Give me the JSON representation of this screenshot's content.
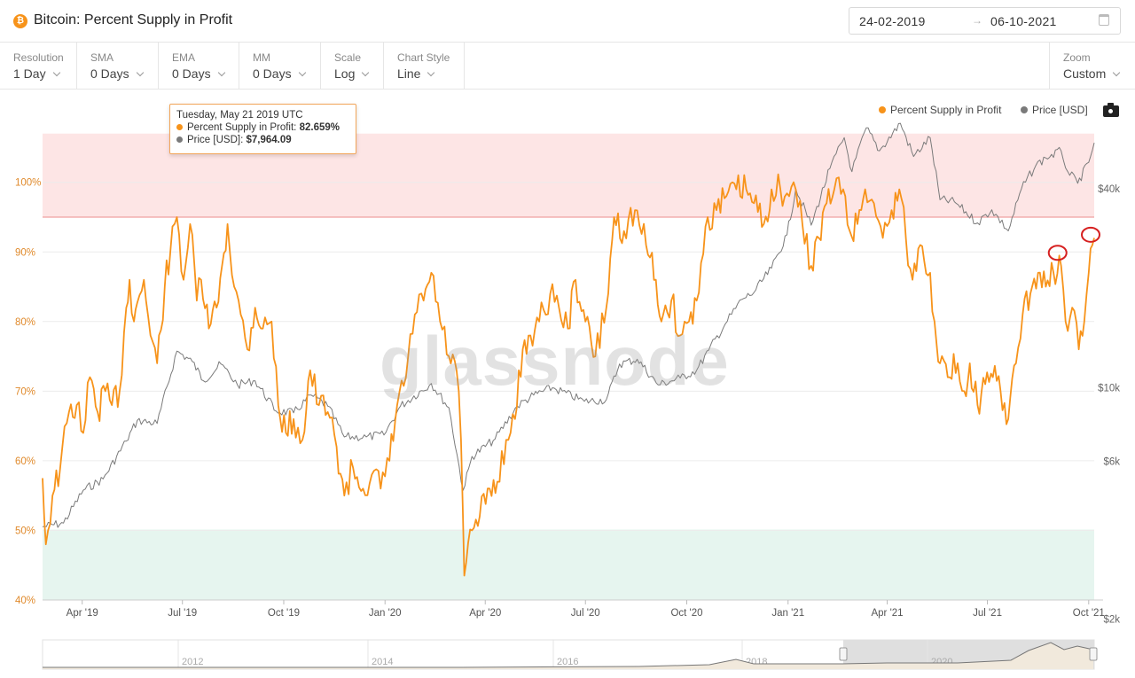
{
  "header": {
    "title": "Bitcoin: Percent Supply in Profit",
    "coin_icon": "bitcoin-icon",
    "date_start": "24-02-2019",
    "date_end": "06-10-2021",
    "date_arrow": "→"
  },
  "toolbar": {
    "resolution": {
      "label": "Resolution",
      "value": "1 Day"
    },
    "sma": {
      "label": "SMA",
      "value": "0 Days"
    },
    "ema": {
      "label": "EMA",
      "value": "0 Days"
    },
    "mm": {
      "label": "MM",
      "value": "0 Days"
    },
    "scale": {
      "label": "Scale",
      "value": "Log"
    },
    "chart_style": {
      "label": "Chart Style",
      "value": "Line"
    },
    "zoom": {
      "label": "Zoom",
      "value": "Custom"
    }
  },
  "legend": {
    "series1": "Percent Supply in Profit",
    "series2": "Price [USD]"
  },
  "tooltip": {
    "date": "Tuesday, May 21 2019 UTC",
    "series1_label": "Percent Supply in Profit:",
    "series1_value": "82.659%",
    "series2_label": "Price [USD]:",
    "series2_value": "$7,964.09"
  },
  "watermark": "glassnode",
  "navigator": {
    "year_labels": [
      "2012",
      "2014",
      "2016",
      "2018",
      "2020"
    ]
  },
  "colors": {
    "supply": "#f7931a",
    "price": "#7a7a7a",
    "overbought_band": "#fde5e5",
    "oversold_band": "#e6f5ef",
    "marker": "#d62020"
  },
  "chart_data": {
    "type": "line",
    "title": "Bitcoin: Percent Supply in Profit",
    "x_tick_labels": [
      "Apr '19",
      "Jul '19",
      "Oct '19",
      "Jan '20",
      "Apr '20",
      "Jul '20",
      "Oct '20",
      "Jan '21",
      "Apr '21",
      "Jul '21",
      "Oct '21"
    ],
    "x_range": [
      "2019-02-24",
      "2021-10-06"
    ],
    "left_axis": {
      "ticks": [
        "40%",
        "50%",
        "60%",
        "70%",
        "80%",
        "90%",
        "100%"
      ],
      "range": [
        40,
        107
      ]
    },
    "right_axis": {
      "ticks": [
        "$2k",
        "$6k",
        "$10k",
        "$40k"
      ],
      "scale": "log",
      "range": [
        2000,
        90000
      ]
    },
    "bands": [
      {
        "from": 95,
        "to": 107,
        "color": "#fde5e5"
      },
      {
        "from": 40,
        "to": 50,
        "color": "#e6f5ef"
      }
    ],
    "series": [
      {
        "name": "Percent Supply in Profit",
        "axis": "left",
        "color": "#f7931a",
        "points": [
          [
            "2019-02-24",
            57.5
          ],
          [
            "2019-02-27",
            48
          ],
          [
            "2019-03-05",
            55
          ],
          [
            "2019-03-12",
            59
          ],
          [
            "2019-03-20",
            67
          ],
          [
            "2019-03-27",
            68
          ],
          [
            "2019-04-02",
            64
          ],
          [
            "2019-04-08",
            72
          ],
          [
            "2019-04-15",
            67
          ],
          [
            "2019-04-22",
            70
          ],
          [
            "2019-04-28",
            68
          ],
          [
            "2019-05-05",
            70
          ],
          [
            "2019-05-11",
            82
          ],
          [
            "2019-05-14",
            86
          ],
          [
            "2019-05-18",
            80
          ],
          [
            "2019-05-21",
            82.7
          ],
          [
            "2019-05-27",
            86
          ],
          [
            "2019-06-02",
            78
          ],
          [
            "2019-06-08",
            74
          ],
          [
            "2019-06-15",
            85
          ],
          [
            "2019-06-20",
            90
          ],
          [
            "2019-06-26",
            95
          ],
          [
            "2019-07-02",
            86
          ],
          [
            "2019-07-08",
            94
          ],
          [
            "2019-07-14",
            83
          ],
          [
            "2019-07-18",
            86
          ],
          [
            "2019-07-25",
            79
          ],
          [
            "2019-08-01",
            82
          ],
          [
            "2019-08-06",
            88
          ],
          [
            "2019-08-11",
            94
          ],
          [
            "2019-08-17",
            85
          ],
          [
            "2019-08-23",
            81
          ],
          [
            "2019-08-29",
            76
          ],
          [
            "2019-09-05",
            82
          ],
          [
            "2019-09-12",
            79
          ],
          [
            "2019-09-20",
            80
          ],
          [
            "2019-09-26",
            68
          ],
          [
            "2019-10-03",
            64
          ],
          [
            "2019-10-10",
            66
          ],
          [
            "2019-10-18",
            63
          ],
          [
            "2019-10-25",
            73
          ],
          [
            "2019-11-02",
            68
          ],
          [
            "2019-11-10",
            67
          ],
          [
            "2019-11-18",
            62
          ],
          [
            "2019-11-25",
            55
          ],
          [
            "2019-12-03",
            59
          ],
          [
            "2019-12-12",
            56
          ],
          [
            "2019-12-20",
            58
          ],
          [
            "2019-12-28",
            56
          ],
          [
            "2020-01-05",
            60
          ],
          [
            "2020-01-12",
            68
          ],
          [
            "2020-01-20",
            72
          ],
          [
            "2020-01-28",
            81
          ],
          [
            "2020-02-05",
            83
          ],
          [
            "2020-02-12",
            87
          ],
          [
            "2020-02-20",
            80
          ],
          [
            "2020-02-28",
            75
          ],
          [
            "2020-03-06",
            73
          ],
          [
            "2020-03-10",
            63
          ],
          [
            "2020-03-13",
            43.5
          ],
          [
            "2020-03-20",
            50
          ],
          [
            "2020-03-27",
            52
          ],
          [
            "2020-04-05",
            56
          ],
          [
            "2020-04-12",
            57
          ],
          [
            "2020-04-20",
            63
          ],
          [
            "2020-04-28",
            66
          ],
          [
            "2020-05-05",
            76
          ],
          [
            "2020-05-12",
            78
          ],
          [
            "2020-05-20",
            80
          ],
          [
            "2020-05-30",
            84
          ],
          [
            "2020-06-07",
            82
          ],
          [
            "2020-06-15",
            79
          ],
          [
            "2020-06-22",
            86
          ],
          [
            "2020-07-01",
            80
          ],
          [
            "2020-07-10",
            75
          ],
          [
            "2020-07-20",
            82
          ],
          [
            "2020-07-27",
            95
          ],
          [
            "2020-08-05",
            93
          ],
          [
            "2020-08-15",
            96
          ],
          [
            "2020-08-25",
            91
          ],
          [
            "2020-09-03",
            86
          ],
          [
            "2020-09-08",
            80
          ],
          [
            "2020-09-17",
            83
          ],
          [
            "2020-09-25",
            78
          ],
          [
            "2020-10-03",
            80
          ],
          [
            "2020-10-10",
            83
          ],
          [
            "2020-10-20",
            95
          ],
          [
            "2020-10-28",
            96
          ],
          [
            "2020-11-06",
            98
          ],
          [
            "2020-11-15",
            99
          ],
          [
            "2020-11-24",
            99
          ],
          [
            "2020-12-01",
            97
          ],
          [
            "2020-12-10",
            94
          ],
          [
            "2020-12-17",
            99
          ],
          [
            "2020-12-25",
            99
          ],
          [
            "2021-01-02",
            98
          ],
          [
            "2021-01-08",
            99
          ],
          [
            "2021-01-14",
            94
          ],
          [
            "2021-01-22",
            88
          ],
          [
            "2021-01-29",
            92
          ],
          [
            "2021-02-05",
            97
          ],
          [
            "2021-02-12",
            99
          ],
          [
            "2021-02-20",
            99
          ],
          [
            "2021-02-26",
            93
          ],
          [
            "2021-03-05",
            94
          ],
          [
            "2021-03-12",
            99
          ],
          [
            "2021-03-20",
            97
          ],
          [
            "2021-03-28",
            92
          ],
          [
            "2021-04-05",
            96
          ],
          [
            "2021-04-12",
            99
          ],
          [
            "2021-04-18",
            92
          ],
          [
            "2021-04-24",
            86
          ],
          [
            "2021-05-01",
            91
          ],
          [
            "2021-05-10",
            87
          ],
          [
            "2021-05-14",
            80
          ],
          [
            "2021-05-19",
            74
          ],
          [
            "2021-05-26",
            72
          ],
          [
            "2021-06-04",
            74
          ],
          [
            "2021-06-10",
            70
          ],
          [
            "2021-06-15",
            74
          ],
          [
            "2021-06-22",
            68
          ],
          [
            "2021-06-29",
            71
          ],
          [
            "2021-07-06",
            72
          ],
          [
            "2021-07-13",
            70
          ],
          [
            "2021-07-20",
            66
          ],
          [
            "2021-07-27",
            74
          ],
          [
            "2021-08-02",
            81
          ],
          [
            "2021-08-09",
            84
          ],
          [
            "2021-08-16",
            87
          ],
          [
            "2021-08-23",
            85
          ],
          [
            "2021-08-30",
            87
          ],
          [
            "2021-09-06",
            88
          ],
          [
            "2021-09-10",
            80
          ],
          [
            "2021-09-16",
            82
          ],
          [
            "2021-09-22",
            76
          ],
          [
            "2021-09-27",
            80
          ],
          [
            "2021-10-01",
            87
          ],
          [
            "2021-10-06",
            92
          ]
        ]
      },
      {
        "name": "Price [USD]",
        "axis": "right",
        "color": "#7a7a7a",
        "points": [
          [
            "2019-02-24",
            3800
          ],
          [
            "2019-03-15",
            3900
          ],
          [
            "2019-04-02",
            4900
          ],
          [
            "2019-04-20",
            5300
          ],
          [
            "2019-05-11",
            6900
          ],
          [
            "2019-05-21",
            7964
          ],
          [
            "2019-06-08",
            7800
          ],
          [
            "2019-06-26",
            12900
          ],
          [
            "2019-07-10",
            12000
          ],
          [
            "2019-07-20",
            10500
          ],
          [
            "2019-08-05",
            11800
          ],
          [
            "2019-08-20",
            10200
          ],
          [
            "2019-09-05",
            10500
          ],
          [
            "2019-09-24",
            8500
          ],
          [
            "2019-10-10",
            8400
          ],
          [
            "2019-10-26",
            9500
          ],
          [
            "2019-11-10",
            8800
          ],
          [
            "2019-11-25",
            7100
          ],
          [
            "2019-12-15",
            7100
          ],
          [
            "2019-12-31",
            7200
          ],
          [
            "2020-01-15",
            8800
          ],
          [
            "2020-02-12",
            10300
          ],
          [
            "2020-02-28",
            8700
          ],
          [
            "2020-03-12",
            4900
          ],
          [
            "2020-03-20",
            6200
          ],
          [
            "2020-04-10",
            7000
          ],
          [
            "2020-04-30",
            8800
          ],
          [
            "2020-05-15",
            9500
          ],
          [
            "2020-06-01",
            10000
          ],
          [
            "2020-06-30",
            9100
          ],
          [
            "2020-07-20",
            9200
          ],
          [
            "2020-08-01",
            11800
          ],
          [
            "2020-08-17",
            12200
          ],
          [
            "2020-09-05",
            10200
          ],
          [
            "2020-09-25",
            10700
          ],
          [
            "2020-10-10",
            11300
          ],
          [
            "2020-10-21",
            13000
          ],
          [
            "2020-11-05",
            15600
          ],
          [
            "2020-11-20",
            18500
          ],
          [
            "2020-12-01",
            19400
          ],
          [
            "2020-12-17",
            23000
          ],
          [
            "2020-12-31",
            29000
          ],
          [
            "2021-01-08",
            40000
          ],
          [
            "2021-01-22",
            31000
          ],
          [
            "2021-02-08",
            46000
          ],
          [
            "2021-02-21",
            57000
          ],
          [
            "2021-02-28",
            45000
          ],
          [
            "2021-03-13",
            61000
          ],
          [
            "2021-03-25",
            52000
          ],
          [
            "2021-04-13",
            63000
          ],
          [
            "2021-04-25",
            50000
          ],
          [
            "2021-05-10",
            57000
          ],
          [
            "2021-05-19",
            37000
          ],
          [
            "2021-06-01",
            36500
          ],
          [
            "2021-06-22",
            31500
          ],
          [
            "2021-07-05",
            34500
          ],
          [
            "2021-07-20",
            29800
          ],
          [
            "2021-08-01",
            40000
          ],
          [
            "2021-08-14",
            47000
          ],
          [
            "2021-08-23",
            49500
          ],
          [
            "2021-09-06",
            52000
          ],
          [
            "2021-09-12",
            45000
          ],
          [
            "2021-09-21",
            41500
          ],
          [
            "2021-10-01",
            48000
          ],
          [
            "2021-10-06",
            55000
          ]
        ]
      }
    ],
    "annotations": [
      {
        "type": "circle",
        "date": "2021-09-06",
        "value": 90,
        "color": "#d62020"
      },
      {
        "type": "circle",
        "date": "2021-10-06",
        "value": 92.6,
        "color": "#d62020"
      }
    ]
  }
}
